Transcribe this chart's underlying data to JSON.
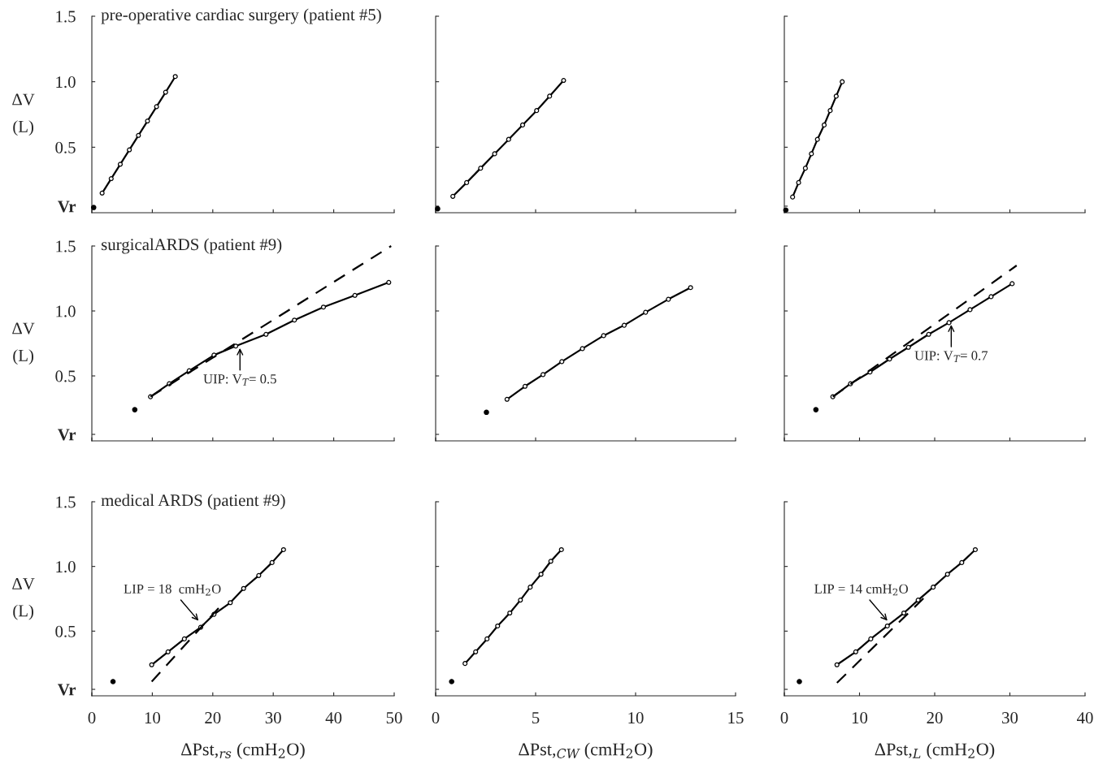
{
  "chart_data": [
    {
      "type": "line",
      "title": "pre-operative cardiac surgery (patient #5)",
      "ylabel": "ΔV\n(L)",
      "xlim": [
        0,
        50
      ],
      "xticks": [
        0,
        10,
        20,
        30,
        40,
        50
      ],
      "ylim": [
        0,
        1.5
      ],
      "yticks": [
        {
          "value": 0.05,
          "label": "Vr"
        },
        {
          "value": 0.5,
          "label": "0.5"
        },
        {
          "value": 1,
          "label": "1.0"
        },
        {
          "value": 1.5,
          "label": "1.5"
        }
      ],
      "tick_labels": "y",
      "series": [
        {
          "type": "line",
          "color": "#000000",
          "marker": "circle",
          "line_style": "solid",
          "x": [
            1.7,
            3.2,
            4.7,
            6.2,
            7.7,
            9.2,
            10.7,
            12.2,
            13.8
          ],
          "values": [
            0.15,
            0.26,
            0.37,
            0.48,
            0.59,
            0.7,
            0.81,
            0.92,
            1.04
          ]
        },
        {
          "type": "scatter",
          "color": "#000000",
          "marker": "circle",
          "x": [
            0.3
          ],
          "values": [
            0.04
          ]
        }
      ]
    },
    {
      "type": "line",
      "xlim": [
        0,
        15
      ],
      "xticks": [
        0,
        5,
        10,
        15
      ],
      "ylim": [
        0,
        1.5
      ],
      "yticks": [
        {
          "value": 0.05,
          "label": null
        },
        {
          "value": 0.5,
          "label": null
        },
        {
          "value": 1,
          "label": null
        },
        {
          "value": 1.5,
          "label": null
        }
      ],
      "tick_labels": false,
      "series": [
        {
          "type": "line",
          "color": "#000000",
          "marker": "circle",
          "line_style": "solid",
          "x": [
            0.86,
            1.55,
            2.25,
            2.95,
            3.65,
            4.35,
            5.05,
            5.7,
            6.4
          ],
          "values": [
            0.125,
            0.23,
            0.34,
            0.45,
            0.56,
            0.67,
            0.78,
            0.89,
            1.01
          ]
        },
        {
          "type": "scatter",
          "color": "#000000",
          "marker": "circle",
          "x": [
            0.1
          ],
          "values": [
            0.03
          ]
        }
      ]
    },
    {
      "type": "line",
      "xlim": [
        0,
        40
      ],
      "xticks": [
        0,
        10,
        20,
        30,
        40
      ],
      "ylim": [
        0,
        1.5
      ],
      "yticks": [
        {
          "value": 0.05,
          "label": null
        },
        {
          "value": 0.5,
          "label": null
        },
        {
          "value": 1,
          "label": null
        },
        {
          "value": 1.5,
          "label": null
        }
      ],
      "tick_labels": false,
      "series": [
        {
          "type": "line",
          "color": "#000000",
          "marker": "circle",
          "line_style": "solid",
          "x": [
            1.1,
            1.9,
            2.8,
            3.6,
            4.4,
            5.3,
            6.1,
            6.9,
            7.7
          ],
          "values": [
            0.12,
            0.23,
            0.34,
            0.45,
            0.56,
            0.67,
            0.78,
            0.89,
            1.0
          ]
        },
        {
          "type": "scatter",
          "color": "#000000",
          "marker": "circle",
          "x": [
            0.2
          ],
          "values": [
            0.02
          ]
        }
      ]
    },
    {
      "type": "line",
      "title": "surgicalARDS (patient #9)",
      "ylabel": "ΔV\n(L)",
      "xlim": [
        0,
        50
      ],
      "xticks": [
        0,
        10,
        20,
        30,
        40,
        50
      ],
      "ylim": [
        0,
        1.5
      ],
      "yticks": [
        {
          "value": 0.05,
          "label": "Vr"
        },
        {
          "value": 0.5,
          "label": "0.5"
        },
        {
          "value": 1,
          "label": "1.0"
        },
        {
          "value": 1.5,
          "label": "1.5"
        }
      ],
      "tick_labels": "y",
      "series": [
        {
          "type": "line",
          "color": "#000000",
          "marker": "circle",
          "line_style": "solid",
          "x": [
            9.7,
            12.8,
            16.1,
            20.2,
            23.8,
            28.8,
            33.5,
            38.3,
            43.5,
            49.1
          ],
          "values": [
            0.34,
            0.44,
            0.54,
            0.66,
            0.73,
            0.82,
            0.93,
            1.03,
            1.12,
            1.22
          ]
        },
        {
          "type": "line",
          "color": "#000000",
          "marker": "none",
          "line_style": "dashed",
          "x": [
            9.7,
            49.5
          ],
          "values": [
            0.34,
            1.5
          ]
        },
        {
          "type": "scatter",
          "color": "#000000",
          "marker": "circle",
          "x": [
            7.1
          ],
          "values": [
            0.24
          ]
        }
      ],
      "annotations": [
        {
          "text": "UIP: V$_{T}$= 0.5",
          "x": 24.5,
          "y": 0.74
        }
      ]
    },
    {
      "type": "line",
      "xlim": [
        0,
        15
      ],
      "xticks": [
        0,
        5,
        10,
        15
      ],
      "ylim": [
        0,
        1.5
      ],
      "yticks": [
        {
          "value": 0.05,
          "label": null
        },
        {
          "value": 0.5,
          "label": null
        },
        {
          "value": 1,
          "label": null
        },
        {
          "value": 1.5,
          "label": null
        }
      ],
      "tick_labels": false,
      "series": [
        {
          "type": "line",
          "color": "#000000",
          "marker": "circle",
          "line_style": "solid",
          "x": [
            3.57,
            4.47,
            5.37,
            6.31,
            7.34,
            8.4,
            9.43,
            10.5,
            11.64,
            12.75
          ],
          "values": [
            0.32,
            0.42,
            0.51,
            0.61,
            0.71,
            0.81,
            0.89,
            0.99,
            1.09,
            1.18
          ]
        },
        {
          "type": "scatter",
          "color": "#000000",
          "marker": "circle",
          "x": [
            2.54
          ],
          "values": [
            0.22
          ]
        }
      ]
    },
    {
      "type": "line",
      "xlim": [
        0,
        40
      ],
      "xticks": [
        0,
        10,
        20,
        30,
        40
      ],
      "ylim": [
        0,
        1.5
      ],
      "yticks": [
        {
          "value": 0.05,
          "label": null
        },
        {
          "value": 0.5,
          "label": null
        },
        {
          "value": 1,
          "label": null
        },
        {
          "value": 1.5,
          "label": null
        }
      ],
      "tick_labels": false,
      "series": [
        {
          "type": "line",
          "color": "#000000",
          "marker": "circle",
          "line_style": "solid",
          "x": [
            6.45,
            8.8,
            11.4,
            14.0,
            16.5,
            19.2,
            21.9,
            24.7,
            27.5,
            30.3
          ],
          "values": [
            0.34,
            0.44,
            0.53,
            0.63,
            0.72,
            0.82,
            0.91,
            1.01,
            1.11,
            1.21
          ]
        },
        {
          "type": "line",
          "color": "#000000",
          "marker": "none",
          "line_style": "dashed",
          "x": [
            6.45,
            30.9
          ],
          "values": [
            0.34,
            1.35
          ]
        },
        {
          "type": "scatter",
          "color": "#000000",
          "marker": "circle",
          "x": [
            4.2
          ],
          "values": [
            0.24
          ]
        }
      ],
      "annotations": [
        {
          "text": "UIP: V$_{T}$= 0.7",
          "x": 22.2,
          "y": 0.92
        }
      ]
    },
    {
      "type": "line",
      "title": "medical ARDS (patient #9)",
      "ylabel": "ΔV\n(L)",
      "xlabel": "ΔPst,$_{rs}$ (cmH$_{2}$O)",
      "xlim": [
        0,
        50
      ],
      "xticks": [
        0,
        10,
        20,
        30,
        40,
        50
      ],
      "ylim": [
        0,
        1.5
      ],
      "yticks": [
        {
          "value": 0.05,
          "label": "Vr"
        },
        {
          "value": 0.5,
          "label": "0.5"
        },
        {
          "value": 1,
          "label": "1.0"
        },
        {
          "value": 1.5,
          "label": "1.5"
        }
      ],
      "series": [
        {
          "type": "line",
          "color": "#000000",
          "marker": "circle",
          "line_style": "solid",
          "x": [
            9.9,
            12.6,
            15.3,
            18.0,
            20.2,
            22.9,
            25.1,
            27.6,
            29.8,
            31.7
          ],
          "values": [
            0.24,
            0.34,
            0.44,
            0.53,
            0.63,
            0.72,
            0.83,
            0.93,
            1.03,
            1.13
          ]
        },
        {
          "type": "line",
          "color": "#000000",
          "marker": "none",
          "line_style": "dashed",
          "x": [
            9.9,
            21.6
          ],
          "values": [
            0.11,
            0.71
          ]
        },
        {
          "type": "scatter",
          "color": "#000000",
          "marker": "circle",
          "x": [
            3.5
          ],
          "values": [
            0.11
          ]
        }
      ],
      "annotations": [
        {
          "text": "LIP = 18  cmH$_{2}$O",
          "x": 18,
          "y": 0.56
        }
      ]
    },
    {
      "type": "line",
      "xlabel": "ΔPst,$_{CW}$ (cmH$_{2}$O)",
      "xlim": [
        0,
        15
      ],
      "xticks": [
        0,
        5,
        10,
        15
      ],
      "ylim": [
        0,
        1.5
      ],
      "yticks": [
        {
          "value": 0.05,
          "label": null
        },
        {
          "value": 0.5,
          "label": null
        },
        {
          "value": 1,
          "label": null
        },
        {
          "value": 1.5,
          "label": null
        }
      ],
      "tick_labels": "x",
      "series": [
        {
          "type": "line",
          "color": "#000000",
          "marker": "circle",
          "line_style": "solid",
          "x": [
            1.47,
            2.0,
            2.57,
            3.1,
            3.71,
            4.24,
            4.73,
            5.27,
            5.76,
            6.29
          ],
          "values": [
            0.25,
            0.34,
            0.44,
            0.54,
            0.64,
            0.74,
            0.84,
            0.94,
            1.04,
            1.13
          ]
        },
        {
          "type": "scatter",
          "color": "#000000",
          "marker": "circle",
          "x": [
            0.8
          ],
          "values": [
            0.11
          ]
        }
      ]
    },
    {
      "type": "line",
      "xlabel": "ΔPst,$_{L}$ (cmH$_{2}$O)",
      "xlim": [
        0,
        40
      ],
      "xticks": [
        0,
        10,
        20,
        30,
        40
      ],
      "ylim": [
        0,
        1.5
      ],
      "yticks": [
        {
          "value": 0.05,
          "label": null
        },
        {
          "value": 0.5,
          "label": null
        },
        {
          "value": 1,
          "label": null
        },
        {
          "value": 1.5,
          "label": null
        }
      ],
      "tick_labels": "x",
      "series": [
        {
          "type": "line",
          "color": "#000000",
          "marker": "circle",
          "line_style": "solid",
          "x": [
            7.0,
            9.5,
            11.5,
            13.7,
            15.9,
            17.8,
            19.8,
            21.7,
            23.6,
            25.4
          ],
          "values": [
            0.24,
            0.34,
            0.44,
            0.54,
            0.64,
            0.74,
            0.84,
            0.94,
            1.03,
            1.13
          ]
        },
        {
          "type": "line",
          "color": "#000000",
          "marker": "none",
          "line_style": "dashed",
          "x": [
            7.0,
            18.8
          ],
          "values": [
            0.1,
            0.77
          ]
        },
        {
          "type": "scatter",
          "color": "#000000",
          "marker": "circle",
          "x": [
            2.0
          ],
          "values": [
            0.11
          ]
        }
      ],
      "annotations": [
        {
          "text": "LIP = 14 cmH$_{2}$O",
          "x": 14,
          "y": 0.56
        }
      ]
    }
  ]
}
